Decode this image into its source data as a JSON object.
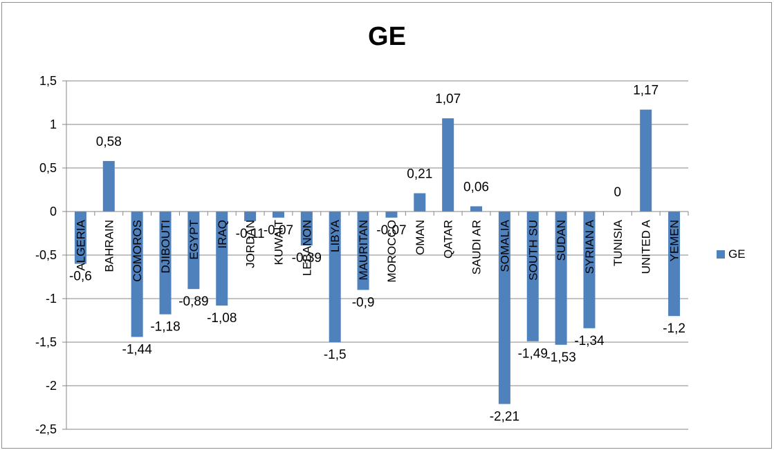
{
  "colors": {
    "bar": "#4f81bd",
    "grid": "#868686",
    "axis": "#868686"
  },
  "chart_data": {
    "type": "bar",
    "title": "GE",
    "xlabel": "",
    "ylabel": "",
    "ylim": [
      -2.5,
      1.5
    ],
    "yticks": [
      "1,5",
      "1",
      "0,5",
      "0",
      "-0,5",
      "-1",
      "-1,5",
      "-2",
      "-2,5"
    ],
    "ytick_values": [
      1.5,
      1,
      0.5,
      0,
      -0.5,
      -1,
      -1.5,
      -2,
      -2.5
    ],
    "grid": true,
    "legend": "right",
    "categories": [
      "ALGERIA",
      "BAHRAIN",
      "COMOROS",
      "DJIBOUTI",
      "EGYPT",
      "IRAQ",
      "JORDAN",
      "KUWAIT",
      "LEBANON",
      "LIBYA",
      "MAURITAN",
      "MOROCCO",
      "OMAN",
      "QATAR",
      "SAUDI AR",
      "SOMALIA",
      "SOUTH SU",
      "SUDAN",
      "SYRIAN A",
      "TUNISIA",
      "UNITED A",
      "YEMEN"
    ],
    "series": [
      {
        "name": "GE",
        "values": [
          -0.6,
          0.58,
          -1.44,
          -1.18,
          -0.89,
          -1.08,
          -0.11,
          -0.07,
          -0.39,
          -1.5,
          -0.9,
          -0.07,
          0.21,
          1.07,
          0.06,
          -2.21,
          -1.49,
          -1.53,
          -1.34,
          0,
          1.17,
          -1.2
        ],
        "labels": [
          "-0,6",
          "0,58",
          "-1,44",
          "-1,18",
          "-0,89",
          "-1,08",
          "-0,11",
          "-0,07",
          "-0,39",
          "-1,5",
          "-0,9",
          "-0,07",
          "0,21",
          "1,07",
          "0,06",
          "-2,21",
          "-1,49",
          "-1,53",
          "-1,34",
          "0",
          "1,17",
          "-1,2"
        ]
      }
    ]
  }
}
